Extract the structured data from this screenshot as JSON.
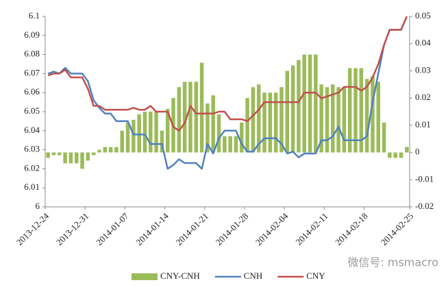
{
  "chart_data": {
    "type": "combo",
    "categories": [
      "2013-12-24",
      null,
      null,
      null,
      null,
      null,
      null,
      "2013-12-31",
      null,
      null,
      null,
      null,
      null,
      null,
      "2014-01-07",
      null,
      null,
      null,
      null,
      null,
      null,
      "2014-01-14",
      null,
      null,
      null,
      null,
      null,
      null,
      "2014-01-21",
      null,
      null,
      null,
      null,
      null,
      null,
      "2014-01-28",
      null,
      null,
      null,
      null,
      null,
      null,
      "2014-02-04",
      null,
      null,
      null,
      null,
      null,
      null,
      "2014-02-11",
      null,
      null,
      null,
      null,
      null,
      null,
      "2014-02-18",
      null,
      null,
      null,
      null,
      null,
      null,
      "2014-02-25"
    ],
    "series": [
      {
        "name": "CNY-CNH",
        "type": "bar",
        "axis": "y2",
        "color": "#9bbb59",
        "values": [
          -0.002,
          -0.001,
          -0.001,
          -0.004,
          -0.004,
          -0.004,
          -0.006,
          -0.003,
          -0.001,
          0.001,
          0.002,
          0.002,
          0.002,
          0.008,
          0.011,
          0.012,
          0.014,
          0.015,
          0.015,
          0.015,
          0.008,
          0.016,
          0.02,
          0.024,
          0.026,
          0.026,
          0.026,
          0.033,
          0.018,
          0.021,
          0.014,
          0.006,
          0.006,
          0.006,
          0.011,
          0.02,
          0.024,
          0.025,
          0.022,
          0.022,
          0.022,
          0.024,
          0.03,
          0.032,
          0.034,
          0.036,
          0.036,
          0.036,
          0.025,
          0.024,
          0.025,
          0.024,
          0.024,
          0.031,
          0.031,
          0.031,
          0.027,
          0.028,
          0.026,
          0.011,
          -0.002,
          -0.002,
          -0.002,
          0.002
        ]
      },
      {
        "name": "CNH",
        "type": "line",
        "color": "#4f81bd",
        "values": [
          6.07,
          6.071,
          6.07,
          6.073,
          6.07,
          6.07,
          6.07,
          6.066,
          6.056,
          6.052,
          6.049,
          6.049,
          6.045,
          6.045,
          6.045,
          6.038,
          6.038,
          6.038,
          6.033,
          6.033,
          6.033,
          6.02,
          6.022,
          6.025,
          6.023,
          6.023,
          6.023,
          6.02,
          6.033,
          6.028,
          6.036,
          6.04,
          6.04,
          6.04,
          6.033,
          6.029,
          6.029,
          6.033,
          6.036,
          6.036,
          6.036,
          6.033,
          6.028,
          6.029,
          6.026,
          6.028,
          6.028,
          6.028,
          6.035,
          6.035,
          6.037,
          6.042,
          6.035,
          6.035,
          6.035,
          6.035,
          6.037,
          6.055,
          6.07,
          6.085,
          6.093,
          6.093,
          6.093,
          6.1
        ]
      },
      {
        "name": "CNY",
        "type": "line",
        "color": "#c0504d",
        "values": [
          6.069,
          6.07,
          6.07,
          6.072,
          6.068,
          6.068,
          6.068,
          6.062,
          6.053,
          6.053,
          6.051,
          6.051,
          6.051,
          6.051,
          6.051,
          6.052,
          6.051,
          6.051,
          6.053,
          6.05,
          6.05,
          6.05,
          6.042,
          6.04,
          6.044,
          6.053,
          6.049,
          6.049,
          6.049,
          6.049,
          6.05,
          6.05,
          6.046,
          6.046,
          6.046,
          6.045,
          6.048,
          6.051,
          6.055,
          6.055,
          6.055,
          6.055,
          6.055,
          6.055,
          6.055,
          6.06,
          6.06,
          6.06,
          6.057,
          6.058,
          6.059,
          6.06,
          6.063,
          6.063,
          6.063,
          6.061,
          6.063,
          6.068,
          6.075,
          6.085,
          6.093,
          6.093,
          6.093,
          6.1
        ]
      }
    ],
    "ylim": [
      6,
      6.1
    ],
    "yticks": [
      6,
      6.01,
      6.02,
      6.03,
      6.04,
      6.05,
      6.06,
      6.07,
      6.08,
      6.09,
      6.1
    ],
    "y2lim": [
      -0.02,
      0.05
    ],
    "y2ticks": [
      -0.02,
      -0.01,
      0,
      0.01,
      0.02,
      0.03,
      0.04,
      0.05
    ],
    "legend": "bottom",
    "watermark": "微信号: msmacro"
  }
}
